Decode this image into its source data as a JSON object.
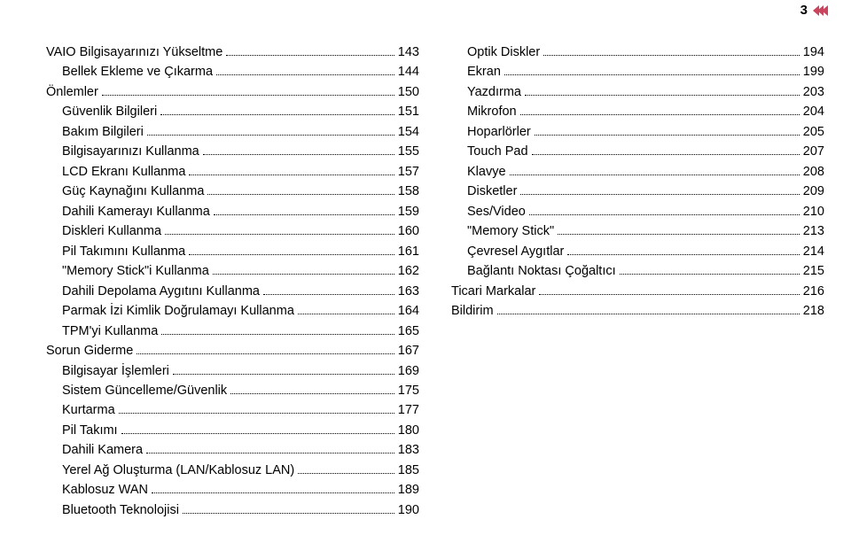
{
  "page_number": "3",
  "colors": {
    "chevron": "#c9445d",
    "text": "#000000",
    "background": "#ffffff"
  },
  "left_column": [
    {
      "indent": 0,
      "label": "VAIO Bilgisayarınızı Yükseltme",
      "page": "143"
    },
    {
      "indent": 1,
      "label": "Bellek Ekleme ve Çıkarma",
      "page": "144"
    },
    {
      "indent": 0,
      "label": "Önlemler",
      "page": "150"
    },
    {
      "indent": 1,
      "label": "Güvenlik Bilgileri",
      "page": "151"
    },
    {
      "indent": 1,
      "label": "Bakım Bilgileri",
      "page": "154"
    },
    {
      "indent": 1,
      "label": "Bilgisayarınızı Kullanma",
      "page": "155"
    },
    {
      "indent": 1,
      "label": "LCD Ekranı Kullanma",
      "page": "157"
    },
    {
      "indent": 1,
      "label": "Güç Kaynağını Kullanma",
      "page": "158"
    },
    {
      "indent": 1,
      "label": "Dahili Kamerayı Kullanma",
      "page": "159"
    },
    {
      "indent": 1,
      "label": "Diskleri Kullanma",
      "page": "160"
    },
    {
      "indent": 1,
      "label": "Pil Takımını Kullanma",
      "page": "161"
    },
    {
      "indent": 1,
      "label": "\"Memory Stick\"i Kullanma",
      "page": "162"
    },
    {
      "indent": 1,
      "label": "Dahili Depolama Aygıtını Kullanma",
      "page": "163"
    },
    {
      "indent": 1,
      "label": "Parmak İzi Kimlik Doğrulamayı Kullanma",
      "page": "164"
    },
    {
      "indent": 1,
      "label": "TPM'yi Kullanma",
      "page": "165"
    },
    {
      "indent": 0,
      "label": "Sorun Giderme",
      "page": "167"
    },
    {
      "indent": 1,
      "label": "Bilgisayar İşlemleri",
      "page": "169"
    },
    {
      "indent": 1,
      "label": "Sistem Güncelleme/Güvenlik",
      "page": "175"
    },
    {
      "indent": 1,
      "label": "Kurtarma",
      "page": "177"
    },
    {
      "indent": 1,
      "label": "Pil Takımı",
      "page": "180"
    },
    {
      "indent": 1,
      "label": "Dahili Kamera",
      "page": "183"
    },
    {
      "indent": 1,
      "label": "Yerel Ağ Oluşturma (LAN/Kablosuz LAN)",
      "page": "185"
    },
    {
      "indent": 1,
      "label": "Kablosuz WAN",
      "page": "189"
    },
    {
      "indent": 1,
      "label": "Bluetooth Teknolojisi",
      "page": "190"
    }
  ],
  "right_column": [
    {
      "indent": 1,
      "label": "Optik Diskler",
      "page": "194"
    },
    {
      "indent": 1,
      "label": "Ekran",
      "page": "199"
    },
    {
      "indent": 1,
      "label": "Yazdırma",
      "page": "203"
    },
    {
      "indent": 1,
      "label": "Mikrofon",
      "page": "204"
    },
    {
      "indent": 1,
      "label": "Hoparlörler",
      "page": "205"
    },
    {
      "indent": 1,
      "label": "Touch Pad",
      "page": "207"
    },
    {
      "indent": 1,
      "label": "Klavye",
      "page": "208"
    },
    {
      "indent": 1,
      "label": "Disketler",
      "page": "209"
    },
    {
      "indent": 1,
      "label": "Ses/Video",
      "page": "210"
    },
    {
      "indent": 1,
      "label": "\"Memory Stick\"",
      "page": "213"
    },
    {
      "indent": 1,
      "label": "Çevresel Aygıtlar",
      "page": "214"
    },
    {
      "indent": 1,
      "label": "Bağlantı Noktası Çoğaltıcı",
      "page": "215"
    },
    {
      "indent": 0,
      "label": "Ticari Markalar",
      "page": "216"
    },
    {
      "indent": 0,
      "label": "Bildirim",
      "page": "218"
    }
  ]
}
